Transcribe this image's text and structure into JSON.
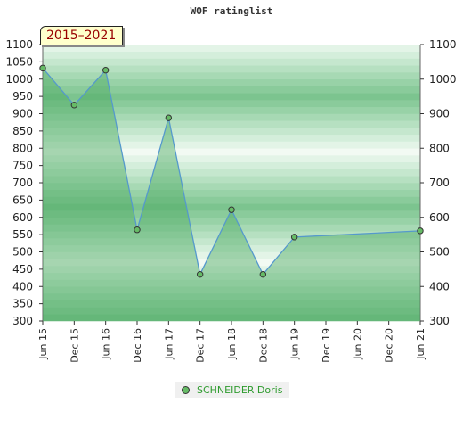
{
  "chart_data": {
    "type": "area",
    "title": "WOF ratinglist",
    "badge": "2015–2021",
    "xlabel": "",
    "ylabel": "",
    "x_ticks": [
      "Jun 15",
      "Dec 15",
      "Jun 16",
      "Dec 16",
      "Jun 17",
      "Dec 17",
      "Jun 18",
      "Dec 18",
      "Jun 19",
      "Dec 19",
      "Jun 20",
      "Dec 20",
      "Jun 21"
    ],
    "ylim": [
      300,
      1100
    ],
    "y_ticks": [
      300,
      350,
      400,
      450,
      500,
      550,
      600,
      650,
      700,
      750,
      800,
      850,
      900,
      950,
      1000,
      1050,
      1100
    ],
    "series": [
      {
        "name": "SCHNEIDER Doris",
        "x": [
          "Jun 15",
          "Dec 15",
          "Jun 16",
          "Dec 16",
          "Jun 17",
          "Dec 17",
          "Jun 18",
          "Dec 18",
          "Jun 19",
          "Jun 21"
        ],
        "values": [
          1032,
          925,
          1026,
          564,
          888,
          435,
          622,
          435,
          543,
          561
        ],
        "markers": [
          true,
          true,
          true,
          true,
          true,
          true,
          true,
          true,
          true,
          true
        ]
      }
    ],
    "colors": {
      "line": "#5599cc",
      "marker": "#66bb66",
      "legend_text": "#2e9b2e",
      "band_dark": "#7cc48f",
      "band_light": "#f2faf3"
    },
    "grid": false,
    "legend": "bottom-center"
  }
}
